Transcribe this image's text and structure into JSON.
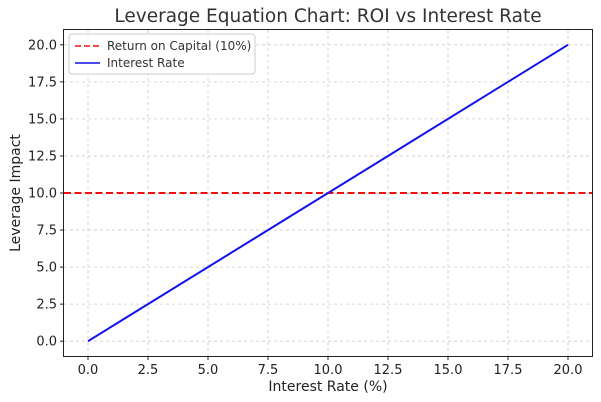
{
  "chart_data": {
    "type": "line",
    "title": "Leverage Equation Chart: ROI vs Interest Rate",
    "xlabel": "Interest Rate (%)",
    "ylabel": "Leverage Impact",
    "xlim": [
      -1,
      21
    ],
    "ylim": [
      -1,
      21
    ],
    "xticks": [
      0.0,
      2.5,
      5.0,
      7.5,
      10.0,
      12.5,
      15.0,
      17.5,
      20.0
    ],
    "yticks": [
      0.0,
      2.5,
      5.0,
      7.5,
      10.0,
      12.5,
      15.0,
      17.5,
      20.0
    ],
    "xtick_labels": [
      "0.0",
      "2.5",
      "5.0",
      "7.5",
      "10.0",
      "12.5",
      "15.0",
      "17.5",
      "20.0"
    ],
    "ytick_labels": [
      "0.0",
      "2.5",
      "5.0",
      "7.5",
      "10.0",
      "12.5",
      "15.0",
      "17.5",
      "20.0"
    ],
    "grid": true,
    "legend_position": "top-left",
    "series": [
      {
        "name": "Return on Capital (10%)",
        "kind": "horizontal-line",
        "y": 10,
        "color": "#ee1111",
        "style": "dashed"
      },
      {
        "name": "Interest Rate",
        "kind": "line",
        "x": [
          0,
          20
        ],
        "y": [
          0,
          20
        ],
        "color": "#1111ee",
        "style": "solid"
      }
    ]
  }
}
